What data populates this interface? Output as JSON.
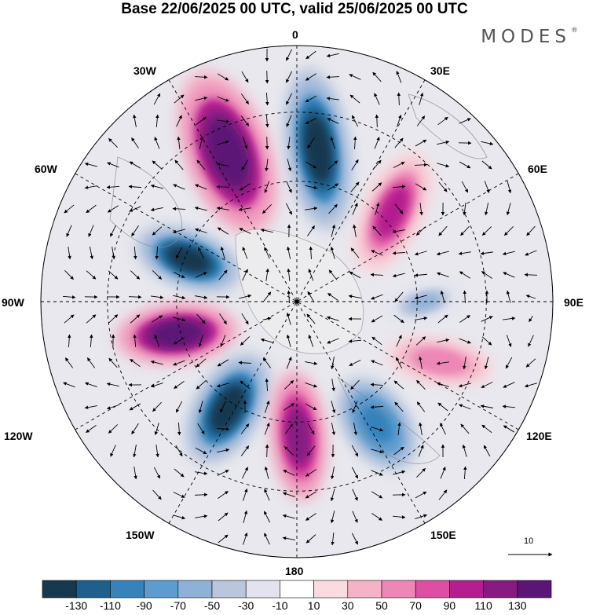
{
  "title": "Base 22/06/2025 00 UTC, valid 25/06/2025 00 UTC",
  "brand": "MODES",
  "brand_mark": "®",
  "lon_labels": {
    "n": "0",
    "ne": "30E",
    "e60": "60E",
    "e90": "90E",
    "e120": "120E",
    "e150": "150E",
    "s": "180",
    "w150": "150W",
    "w120": "120W",
    "w90": "90W",
    "w60": "60W",
    "w30": "30W"
  },
  "reference_vector": {
    "label": "10"
  },
  "colorbar": {
    "colors": [
      "#17384f",
      "#1f5f8b",
      "#3682bb",
      "#5e9ccf",
      "#8fb1d8",
      "#bac6dd",
      "#e2e3ee",
      "#ffffff",
      "#fadbdf",
      "#f4b3c7",
      "#ec87b6",
      "#dc4fa2",
      "#b31f8f",
      "#861b82",
      "#5b1575"
    ],
    "tick_labels": [
      "-130",
      "-110",
      "-90",
      "-70",
      "-50",
      "-30",
      "-10",
      "10",
      "30",
      "50",
      "70",
      "90",
      "110",
      "130"
    ]
  },
  "map": {
    "projection": "north-polar-stereographic",
    "graticule": "dashed",
    "anomalies": [
      {
        "region": "north-60W",
        "sign": "negative",
        "magnitude": 130
      },
      {
        "region": "west-90W",
        "sign": "positive",
        "magnitude": 130
      },
      {
        "region": "south-150W",
        "sign": "negative",
        "magnitude": 130
      },
      {
        "region": "south-180",
        "sign": "positive",
        "magnitude": 120
      },
      {
        "region": "south-150E",
        "sign": "negative",
        "magnitude": 100
      },
      {
        "region": "east-110E",
        "sign": "positive",
        "magnitude": 60
      },
      {
        "region": "east-80E",
        "sign": "negative",
        "magnitude": 50
      },
      {
        "region": "north-45E",
        "sign": "positive",
        "magnitude": 90
      },
      {
        "region": "north-10E",
        "sign": "negative",
        "magnitude": 130
      },
      {
        "region": "north-25W",
        "sign": "positive",
        "magnitude": 130
      }
    ]
  }
}
